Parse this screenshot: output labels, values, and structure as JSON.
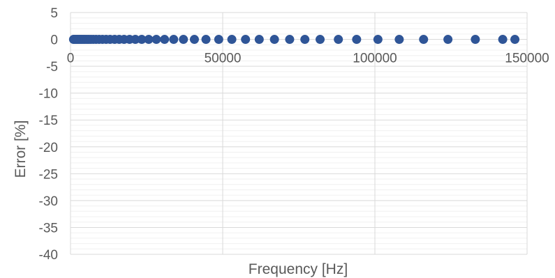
{
  "chart_data": {
    "type": "scatter",
    "title": "",
    "xlabel": "Frequency [Hz]",
    "ylabel": "Error [%]",
    "xlim": [
      0,
      150000
    ],
    "ylim": [
      -40,
      5
    ],
    "x_ticks": [
      0,
      50000,
      100000,
      150000
    ],
    "y_ticks": [
      5,
      0,
      -5,
      -10,
      -15,
      -20,
      -25,
      -30,
      -35,
      -40
    ],
    "x_tick_labels": [
      "0",
      "50000",
      "100000",
      "150000"
    ],
    "y_tick_labels": [
      "5",
      "0",
      "-5",
      "-10",
      "-15",
      "-20",
      "-25",
      "-30",
      "-35",
      "-40"
    ],
    "grid": true,
    "legend": "none",
    "marker_color": "#2f5597",
    "series": [
      {
        "x": [
          1000,
          1200,
          1400,
          1600,
          1800,
          2000,
          2300,
          2600,
          3000,
          3400,
          3800,
          4300,
          4800,
          5400,
          6000,
          6700,
          7500,
          8400,
          9400,
          10500,
          11700,
          13000,
          14500,
          16000,
          17600,
          19400,
          21300,
          23400,
          25700,
          28200,
          30900,
          33900,
          37100,
          40700,
          44500,
          48700,
          53000,
          57500,
          62000,
          67000,
          72000,
          77000,
          82000,
          88000,
          94000,
          101000,
          108000,
          116000,
          124000,
          133000,
          142000,
          146000
        ],
        "y": [
          0,
          0,
          0,
          0,
          0,
          0,
          0,
          0,
          0,
          0,
          0,
          0,
          0,
          0,
          0,
          0,
          0,
          0,
          0,
          0,
          0,
          0,
          0,
          0,
          0,
          0,
          0,
          0,
          0,
          0,
          0,
          0,
          0,
          0,
          0,
          0,
          0,
          0,
          0,
          0,
          0,
          0,
          0,
          0,
          0,
          0,
          0,
          0,
          0,
          0,
          0,
          0
        ]
      }
    ]
  }
}
